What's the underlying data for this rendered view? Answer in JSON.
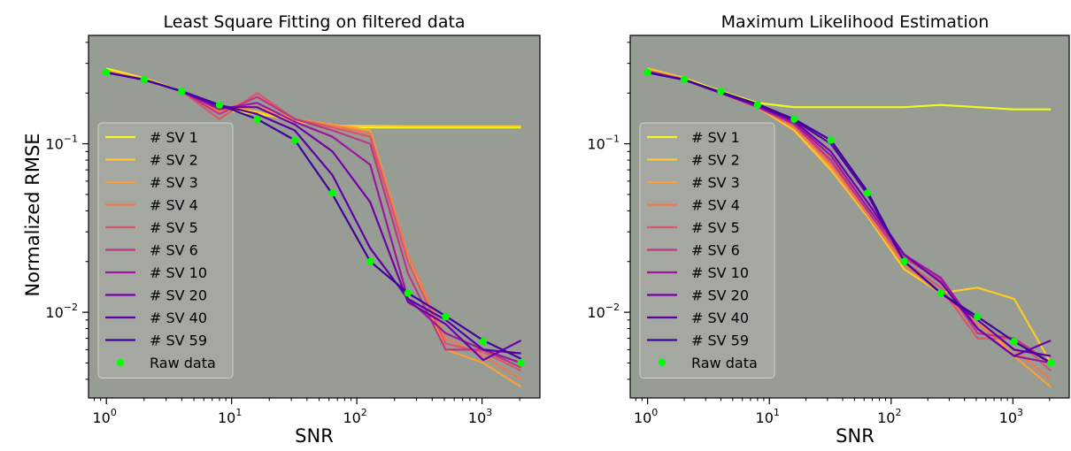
{
  "chart_data": [
    {
      "type": "line",
      "title": "Least Square Fitting on filtered data",
      "xlabel": "SNR",
      "ylabel": "Normalized RMSE",
      "xscale": "log",
      "yscale": "log",
      "xlim": [
        0.72,
        2900
      ],
      "ylim": [
        0.0031,
        0.44
      ],
      "grid": false,
      "plot_background": "#979c94",
      "legend_position": "lower-left",
      "x_ticks": [
        {
          "value": 1,
          "base": "10",
          "exp": "0"
        },
        {
          "value": 10,
          "base": "10",
          "exp": "1"
        },
        {
          "value": 100,
          "base": "10",
          "exp": "2"
        },
        {
          "value": 1000,
          "base": "10",
          "exp": "3"
        }
      ],
      "y_ticks": [
        {
          "value": 0.1,
          "base": "10",
          "exp": "−1"
        },
        {
          "value": 0.01,
          "base": "10",
          "exp": "−2"
        }
      ],
      "x": [
        1,
        2,
        4,
        8,
        16,
        32,
        64,
        128,
        256,
        512,
        1024,
        2048
      ],
      "series": [
        {
          "name": "# SV 1",
          "color": "#f0f921",
          "values": [
            0.28,
            0.245,
            0.205,
            0.16,
            0.15,
            0.14,
            0.125,
            0.125,
            0.125,
            0.125,
            0.125,
            0.125
          ]
        },
        {
          "name": "# SV 2",
          "color": "#fdca26",
          "values": [
            0.275,
            0.243,
            0.205,
            0.165,
            0.155,
            0.135,
            0.128,
            0.128,
            0.127,
            0.127,
            0.127,
            0.127
          ]
        },
        {
          "name": "# SV 3",
          "color": "#fb9f3a",
          "values": [
            0.27,
            0.242,
            0.205,
            0.16,
            0.165,
            0.14,
            0.13,
            0.12,
            0.022,
            0.006,
            0.005,
            0.0036
          ]
        },
        {
          "name": "# SV 4",
          "color": "#ed7953",
          "values": [
            0.268,
            0.241,
            0.205,
            0.155,
            0.19,
            0.14,
            0.128,
            0.115,
            0.022,
            0.007,
            0.0055,
            0.004
          ]
        },
        {
          "name": "# SV 5",
          "color": "#d8576b",
          "values": [
            0.265,
            0.24,
            0.205,
            0.14,
            0.2,
            0.14,
            0.125,
            0.11,
            0.02,
            0.0065,
            0.0058,
            0.0045
          ]
        },
        {
          "name": "# SV 6",
          "color": "#bd3786",
          "values": [
            0.265,
            0.24,
            0.205,
            0.15,
            0.19,
            0.14,
            0.12,
            0.1,
            0.017,
            0.006,
            0.006,
            0.0047
          ]
        },
        {
          "name": "# SV 10",
          "color": "#9c179e",
          "values": [
            0.265,
            0.24,
            0.205,
            0.16,
            0.175,
            0.135,
            0.11,
            0.075,
            0.012,
            0.0075,
            0.006,
            0.005
          ]
        },
        {
          "name": "# SV 20",
          "color": "#7201a8",
          "values": [
            0.265,
            0.24,
            0.205,
            0.165,
            0.165,
            0.13,
            0.09,
            0.045,
            0.0115,
            0.0085,
            0.0052,
            0.0068
          ]
        },
        {
          "name": "# SV 40",
          "color": "#5c01a6",
          "values": [
            0.265,
            0.24,
            0.205,
            0.17,
            0.15,
            0.12,
            0.065,
            0.024,
            0.012,
            0.009,
            0.006,
            0.0057
          ]
        },
        {
          "name": "# SV 59",
          "color": "#3f049b",
          "values": [
            0.265,
            0.24,
            0.205,
            0.17,
            0.14,
            0.105,
            0.05,
            0.02,
            0.013,
            0.0095,
            0.0068,
            0.0053
          ]
        }
      ],
      "points": {
        "name": "Raw data",
        "color": "#00ff00",
        "values": [
          0.265,
          0.24,
          0.205,
          0.17,
          0.14,
          0.105,
          0.051,
          0.02,
          0.013,
          0.0094,
          0.0067,
          0.005
        ]
      }
    },
    {
      "type": "line",
      "title": "Maximum Likelihood Estimation",
      "xlabel": "SNR",
      "ylabel": "",
      "xscale": "log",
      "yscale": "log",
      "xlim": [
        0.72,
        2900
      ],
      "ylim": [
        0.0031,
        0.44
      ],
      "grid": false,
      "plot_background": "#979c94",
      "legend_position": "lower-left",
      "x_ticks": [
        {
          "value": 1,
          "base": "10",
          "exp": "0"
        },
        {
          "value": 10,
          "base": "10",
          "exp": "1"
        },
        {
          "value": 100,
          "base": "10",
          "exp": "2"
        },
        {
          "value": 1000,
          "base": "10",
          "exp": "3"
        }
      ],
      "y_ticks": [
        {
          "value": 0.1,
          "base": "10",
          "exp": "−1"
        },
        {
          "value": 0.01,
          "base": "10",
          "exp": "−2"
        }
      ],
      "x": [
        1,
        2,
        4,
        8,
        16,
        32,
        64,
        128,
        256,
        512,
        1024,
        2048
      ],
      "series": [
        {
          "name": "# SV 1",
          "color": "#f0f921",
          "values": [
            0.28,
            0.245,
            0.205,
            0.175,
            0.165,
            0.165,
            0.165,
            0.165,
            0.17,
            0.165,
            0.16,
            0.16
          ]
        },
        {
          "name": "# SV 2",
          "color": "#fdca26",
          "values": [
            0.28,
            0.243,
            0.2,
            0.165,
            0.12,
            0.07,
            0.037,
            0.018,
            0.013,
            0.014,
            0.012,
            0.005
          ]
        },
        {
          "name": "# SV 3",
          "color": "#fb9f3a",
          "values": [
            0.275,
            0.243,
            0.2,
            0.165,
            0.125,
            0.072,
            0.038,
            0.019,
            0.013,
            0.009,
            0.0055,
            0.0036
          ]
        },
        {
          "name": "# SV 4",
          "color": "#ed7953",
          "values": [
            0.272,
            0.242,
            0.2,
            0.165,
            0.125,
            0.075,
            0.038,
            0.019,
            0.013,
            0.0085,
            0.006,
            0.004
          ]
        },
        {
          "name": "# SV 5",
          "color": "#d8576b",
          "values": [
            0.27,
            0.241,
            0.2,
            0.165,
            0.13,
            0.078,
            0.04,
            0.02,
            0.014,
            0.007,
            0.007,
            0.0045
          ]
        },
        {
          "name": "# SV 6",
          "color": "#bd3786",
          "values": [
            0.268,
            0.24,
            0.2,
            0.165,
            0.13,
            0.08,
            0.04,
            0.021,
            0.0155,
            0.0075,
            0.007,
            0.005
          ]
        },
        {
          "name": "# SV 10",
          "color": "#9c179e",
          "values": [
            0.268,
            0.24,
            0.2,
            0.167,
            0.133,
            0.085,
            0.042,
            0.022,
            0.016,
            0.008,
            0.0055,
            0.005
          ]
        },
        {
          "name": "# SV 20",
          "color": "#7201a8",
          "values": [
            0.265,
            0.24,
            0.2,
            0.168,
            0.136,
            0.09,
            0.045,
            0.022,
            0.015,
            0.008,
            0.0055,
            0.0068
          ]
        },
        {
          "name": "# SV 40",
          "color": "#5c01a6",
          "values": [
            0.265,
            0.24,
            0.2,
            0.17,
            0.138,
            0.1,
            0.05,
            0.02,
            0.013,
            0.009,
            0.006,
            0.0055
          ]
        },
        {
          "name": "# SV 59",
          "color": "#3f049b",
          "values": [
            0.265,
            0.24,
            0.203,
            0.172,
            0.14,
            0.105,
            0.052,
            0.02,
            0.013,
            0.0094,
            0.0067,
            0.005
          ]
        }
      ],
      "points": {
        "name": "Raw data",
        "color": "#00ff00",
        "values": [
          0.265,
          0.24,
          0.205,
          0.17,
          0.14,
          0.105,
          0.051,
          0.02,
          0.013,
          0.0094,
          0.0067,
          0.005
        ]
      }
    }
  ]
}
